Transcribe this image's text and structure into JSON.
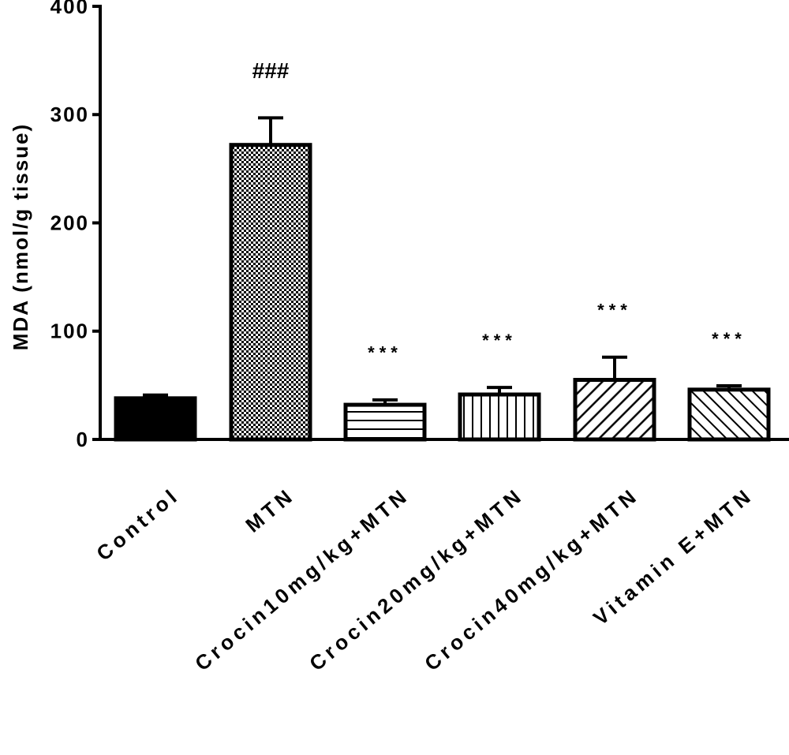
{
  "chart_data": {
    "type": "bar",
    "y_label": "MDA (nmol/g tissue)",
    "categories": [
      "Control",
      "MTN",
      "Crocin10mg/kg+MTN",
      "Crocin20mg/kg+MTN",
      "Crocin40mg/kg+MTN",
      "Vitamin E+MTN"
    ],
    "values": [
      38,
      272,
      32,
      41.5,
      55,
      46
    ],
    "errors": [
      3,
      25,
      4.5,
      6.5,
      21,
      3.5
    ],
    "patterns": [
      "solid",
      "checker",
      "horizontal",
      "vertical",
      "diagonal",
      "diagonal-reverse"
    ],
    "color": "#000000",
    "annotations": [
      {
        "category": "MTN",
        "text": "###"
      },
      {
        "category": "Crocin10mg/kg+MTN",
        "text": "***"
      },
      {
        "category": "Crocin20mg/kg+MTN",
        "text": "***"
      },
      {
        "category": "Crocin40mg/kg+MTN",
        "text": "***"
      },
      {
        "category": "Vitamin E+MTN",
        "text": "***"
      }
    ],
    "ylim": [
      0,
      400
    ],
    "yticks": [
      0,
      100,
      200,
      300,
      400
    ],
    "grid": false
  }
}
